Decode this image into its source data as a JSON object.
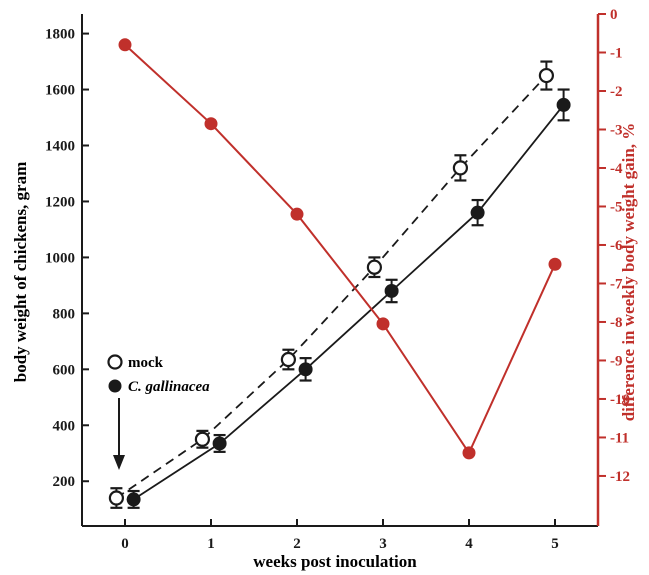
{
  "chart_data": {
    "type": "line",
    "xlabel": "weeks post inoculation",
    "ylabel": "body weight of chickens, gram",
    "y2label": "difference in weekly body weight gain, %",
    "xlim": [
      -0.5,
      5.5
    ],
    "xticks": [
      0,
      1,
      2,
      3,
      4,
      5
    ],
    "ylim": [
      40,
      1870
    ],
    "yticks": [
      200,
      400,
      600,
      800,
      1000,
      1200,
      1400,
      1600,
      1800
    ],
    "y2lim": [
      -13.3,
      0
    ],
    "y2ticks": [
      0,
      -1,
      -2,
      -3,
      -4,
      -5,
      -6,
      -7,
      -8,
      -9,
      -10,
      -11,
      -12
    ],
    "grid": false,
    "legend": {
      "position": "lower-left",
      "entries": [
        {
          "label": "mock",
          "marker": "open-circle"
        },
        {
          "label": "C. gallinacea",
          "marker": "filled-circle"
        }
      ]
    },
    "colors": {
      "weight": "#1a1a1a",
      "diff": "#c0302b"
    },
    "series": [
      {
        "name": "mock",
        "axis": "left",
        "style": "dashed",
        "marker": "open-circle",
        "x": [
          -0.1,
          0.9,
          1.9,
          2.9,
          3.9,
          4.9
        ],
        "y": [
          140,
          350,
          635,
          965,
          1320,
          1650
        ],
        "err": [
          35,
          30,
          35,
          35,
          45,
          50
        ]
      },
      {
        "name": "C. gallinacea",
        "axis": "left",
        "style": "solid",
        "marker": "filled-circle",
        "x": [
          0.1,
          1.1,
          2.1,
          3.1,
          4.1,
          5.1
        ],
        "y": [
          135,
          335,
          600,
          880,
          1160,
          1545
        ],
        "err": [
          30,
          30,
          40,
          40,
          45,
          55
        ]
      },
      {
        "axis": "right",
        "style": "solid",
        "marker": "filled-circle",
        "x": [
          0,
          1,
          2,
          3,
          4,
          5
        ],
        "y": [
          -0.8,
          -2.85,
          -5.2,
          -8.05,
          -11.4,
          -6.5
        ]
      }
    ]
  }
}
